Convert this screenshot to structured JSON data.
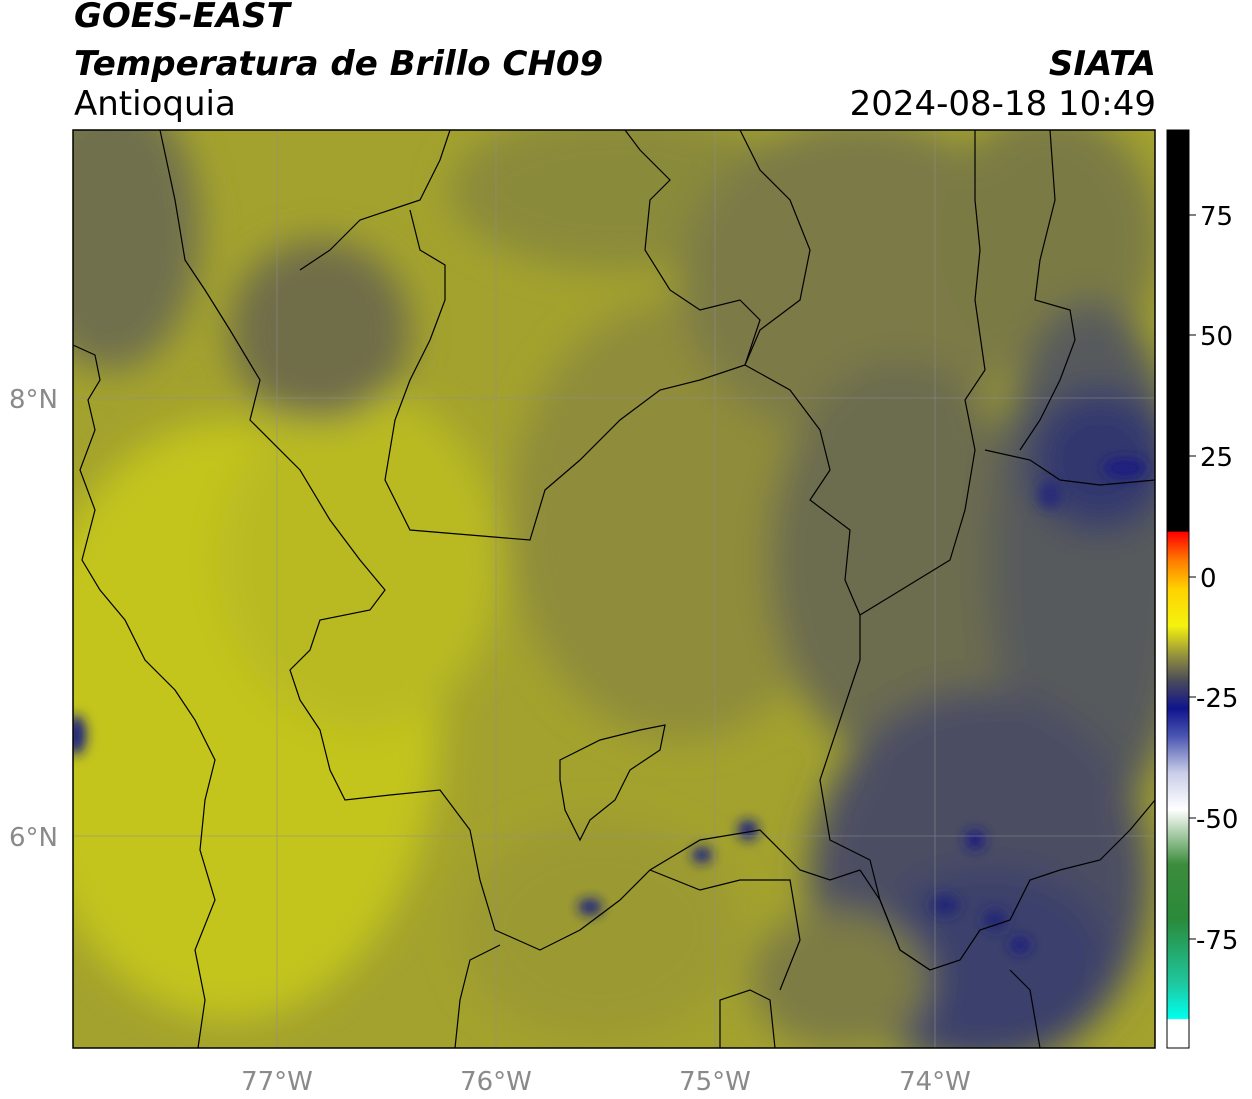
{
  "header": {
    "satellite": "GOES-EAST",
    "product": "Temperatura de Brillo CH09",
    "region": "Antioquia",
    "organization": "SIATA",
    "timestamp": "2024-08-18 10:49"
  },
  "map": {
    "lon_ticks": [
      "77°W",
      "76°W",
      "75°W",
      "74°W"
    ],
    "lat_ticks": [
      "8°N",
      "6°N"
    ],
    "cloud_colors": {
      "warm": "#c5c620",
      "mid": "#8f8d3c",
      "cool": "#5d5e58",
      "cold": "#2e3470",
      "coldest": "#15197e"
    }
  },
  "colorbar": {
    "ticks": [
      "75",
      "50",
      "25",
      "0",
      "-25",
      "-50",
      "-75"
    ]
  }
}
